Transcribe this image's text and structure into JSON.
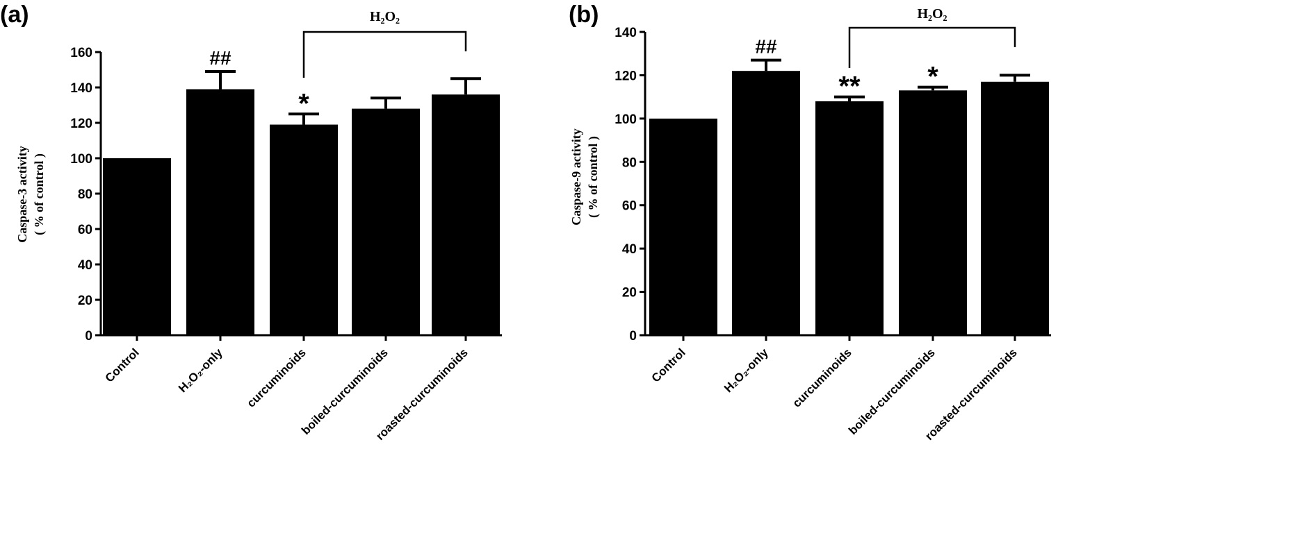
{
  "chart_data": [
    {
      "type": "bar",
      "panel": "(a)",
      "title": "",
      "xlabel": "",
      "ylabel": "Caspase-3 activity",
      "ylabel_line2": "( % of control )",
      "ylim": [
        0,
        160
      ],
      "yticks": [
        0,
        20,
        40,
        60,
        80,
        100,
        120,
        140,
        160
      ],
      "categories": [
        "Control",
        "H₂O₂-only",
        "curcuminoids",
        "boiled-curcuminoids",
        "roasted-curcuminoids"
      ],
      "values": [
        100,
        139,
        119,
        128,
        136
      ],
      "errors": [
        0,
        10,
        6,
        6,
        9
      ],
      "significance": [
        "",
        "##",
        "*",
        "",
        ""
      ],
      "bracket": {
        "label": "H₂O₂",
        "from_category": 2,
        "to_category": 4
      },
      "bar_color": "#000000",
      "grid": false
    },
    {
      "type": "bar",
      "panel": "(b)",
      "title": "",
      "xlabel": "",
      "ylabel": "Caspase-9 activity",
      "ylabel_line2": "( % of control )",
      "ylim": [
        0,
        140
      ],
      "yticks": [
        0,
        20,
        40,
        60,
        80,
        100,
        120,
        140
      ],
      "categories": [
        "Control",
        "H₂O₂-only",
        "curcuminoids",
        "boiled-curcuminoids",
        "roasted-curcuminoids"
      ],
      "values": [
        100,
        122,
        108,
        113,
        117
      ],
      "errors": [
        0,
        5,
        2,
        1.5,
        3
      ],
      "significance": [
        "",
        "##",
        "**",
        "*",
        ""
      ],
      "bracket": {
        "label": "H₂O₂",
        "from_category": 2,
        "to_category": 4
      },
      "bar_color": "#000000",
      "grid": false
    }
  ]
}
